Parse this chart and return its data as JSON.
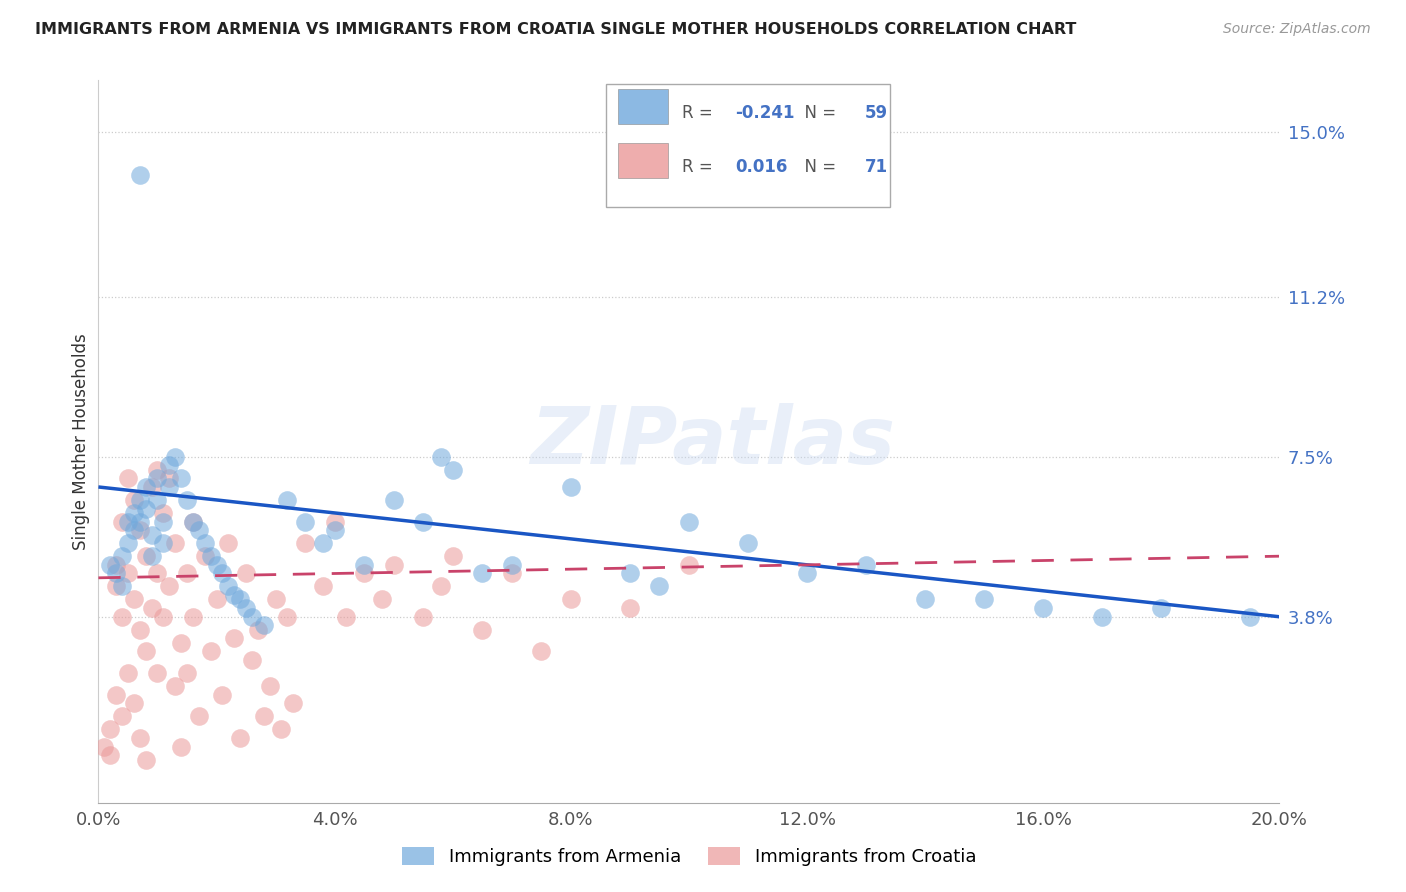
{
  "title": "IMMIGRANTS FROM ARMENIA VS IMMIGRANTS FROM CROATIA SINGLE MOTHER HOUSEHOLDS CORRELATION CHART",
  "source": "Source: ZipAtlas.com",
  "ylabel": "Single Mother Households",
  "xlim": [
    0.0,
    0.2
  ],
  "ylim": [
    -0.005,
    0.162
  ],
  "xtick_labels": [
    "0.0%",
    "4.0%",
    "8.0%",
    "12.0%",
    "16.0%",
    "20.0%"
  ],
  "xtick_vals": [
    0.0,
    0.04,
    0.08,
    0.12,
    0.16,
    0.2
  ],
  "ytick_labels_right": [
    "15.0%",
    "11.2%",
    "7.5%",
    "3.8%"
  ],
  "ytick_vals_right": [
    0.15,
    0.112,
    0.075,
    0.038
  ],
  "armenia_color": "#6fa8dc",
  "croatia_color": "#ea9999",
  "trendline_armenia_color": "#1a56c4",
  "trendline_croatia_color": "#c9436a",
  "legend_R_armenia": "-0.241",
  "legend_N_armenia": "59",
  "legend_R_croatia": "0.016",
  "legend_N_croatia": "71",
  "watermark": "ZIPatlas",
  "armenia_trendline": [
    [
      0.0,
      0.068
    ],
    [
      0.2,
      0.038
    ]
  ],
  "croatia_trendline": [
    [
      0.0,
      0.047
    ],
    [
      0.2,
      0.052
    ]
  ]
}
